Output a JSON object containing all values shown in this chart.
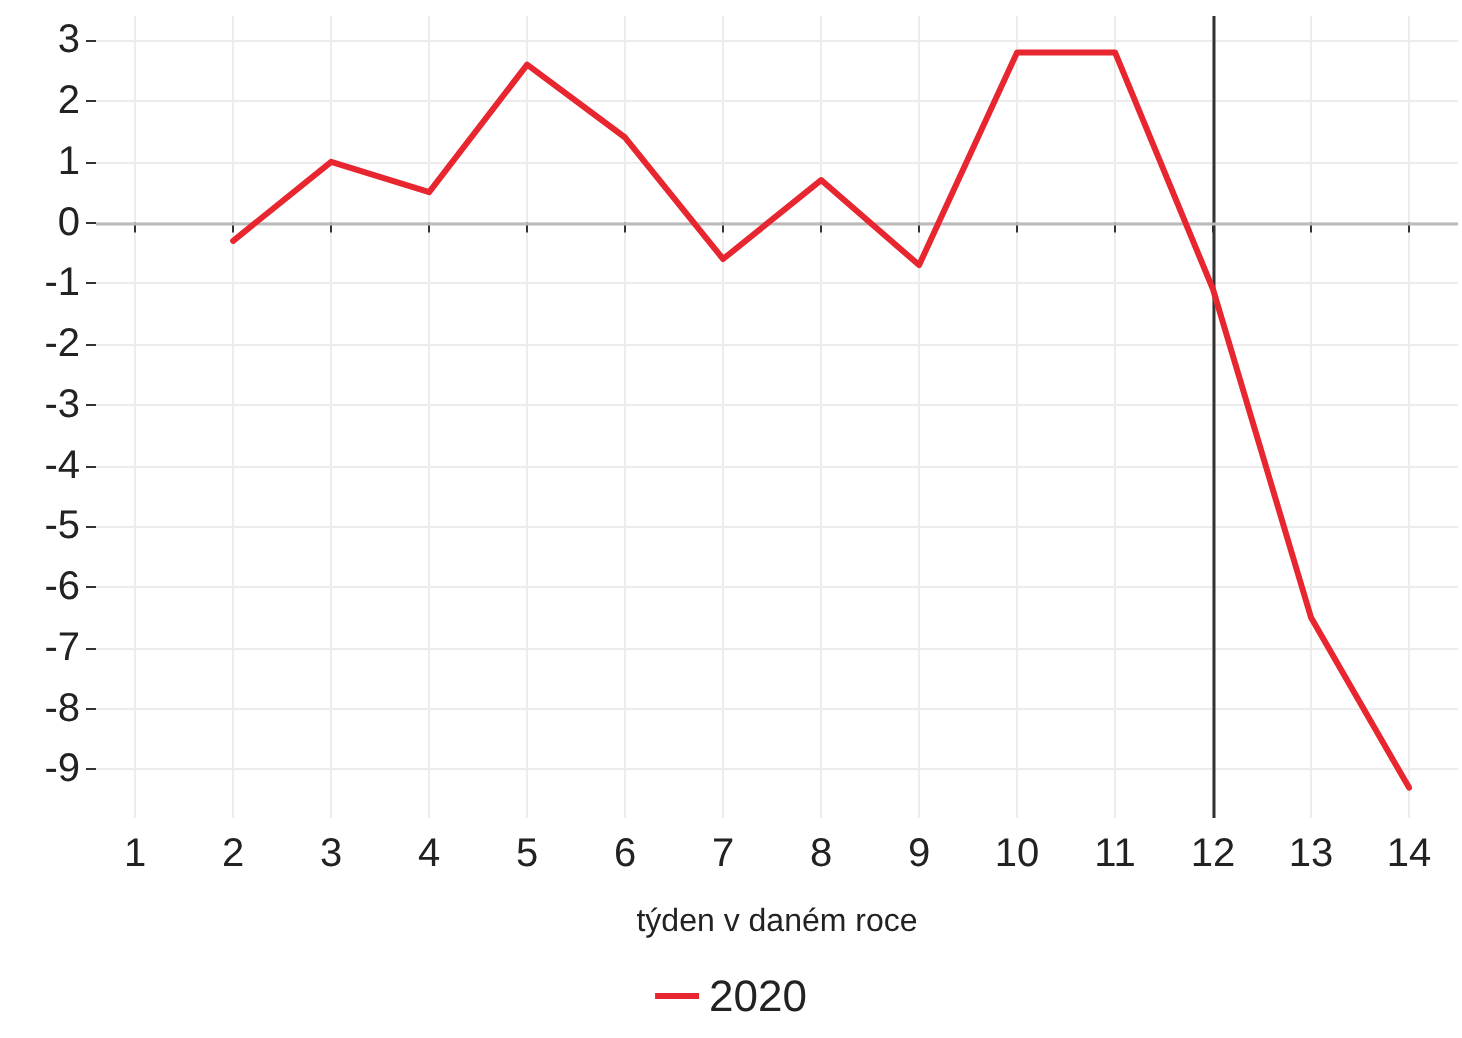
{
  "chart_data": {
    "type": "line",
    "xlabel": "týden v daném roce",
    "x": [
      2,
      3,
      4,
      5,
      6,
      7,
      8,
      9,
      10,
      11,
      12,
      13,
      14
    ],
    "series": [
      {
        "name": "2020",
        "color": "#e8262f",
        "values": [
          -0.3,
          1.0,
          0.5,
          2.6,
          1.4,
          -0.6,
          0.7,
          -0.7,
          2.8,
          2.8,
          -1.1,
          -6.5,
          -9.3
        ]
      }
    ],
    "xlim": [
      0.6,
      14.5
    ],
    "xticks": [
      1,
      2,
      3,
      4,
      5,
      6,
      7,
      8,
      9,
      10,
      11,
      12,
      13,
      14
    ],
    "ylim": [
      -9.8,
      3.4
    ],
    "yticks": [
      -9,
      -8,
      -7,
      -6,
      -5,
      -4,
      -3,
      -2,
      -1,
      0,
      1,
      2,
      3
    ],
    "ref_lines": [
      {
        "axis": "x",
        "value": 12,
        "color": "#333333"
      },
      {
        "axis": "y",
        "value": 0,
        "color": "#bbbbbb"
      }
    ],
    "grid": true,
    "legend": "bottom",
    "marker": "none",
    "line_style": "solid"
  }
}
